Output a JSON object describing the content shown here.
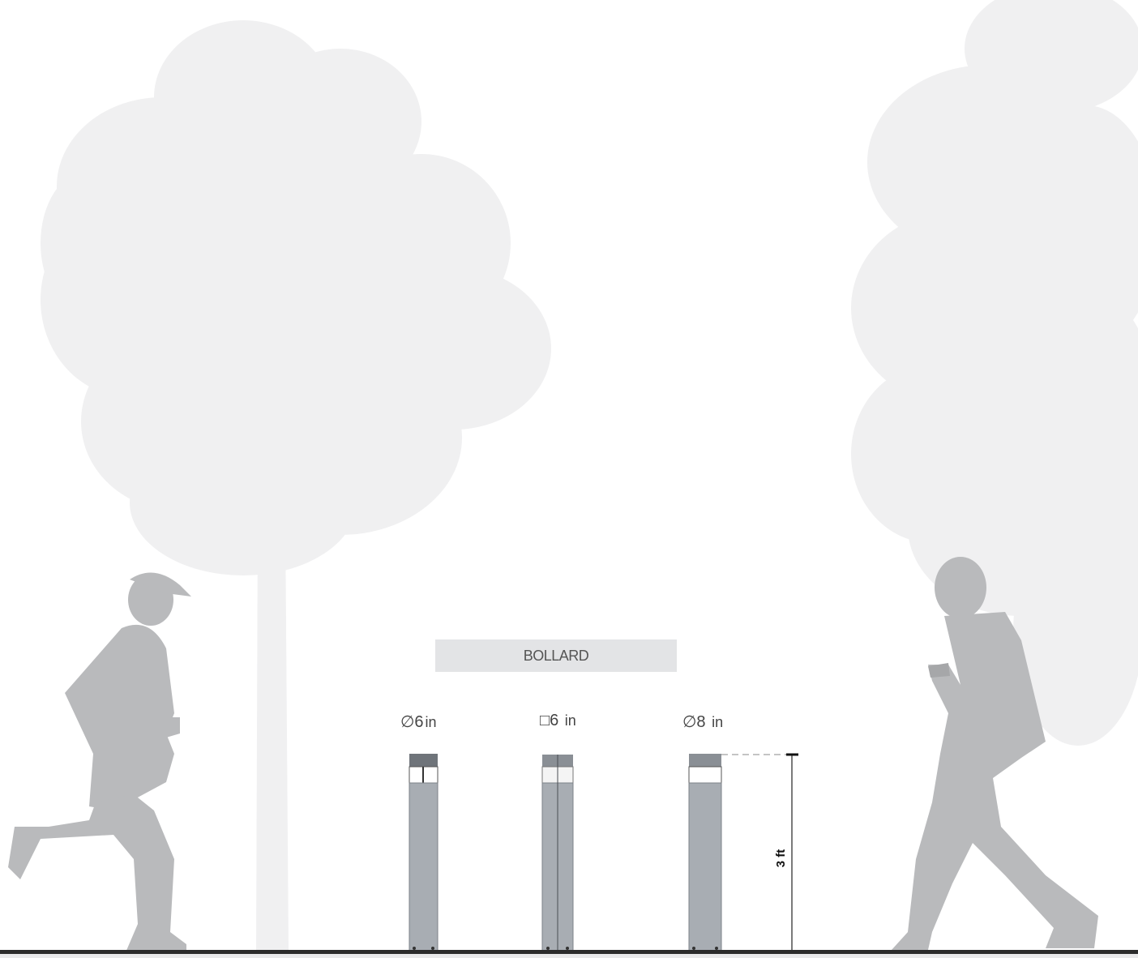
{
  "title": "BOLLARD",
  "bollards": [
    {
      "symbol": "∅",
      "size": "6",
      "unit": "in"
    },
    {
      "symbol": "□",
      "size": "6",
      "unit": "in"
    },
    {
      "symbol": "∅",
      "size": "8",
      "unit": "in"
    }
  ],
  "dimension": {
    "height_label": "3 ft"
  },
  "colors": {
    "tree": "#f0f0f1",
    "person": "#b9babc",
    "bollard_body": "#a8adb3",
    "bollard_dark": "#7d8288",
    "ground": "#2b2b2b",
    "title_bg": "#e3e4e6"
  }
}
